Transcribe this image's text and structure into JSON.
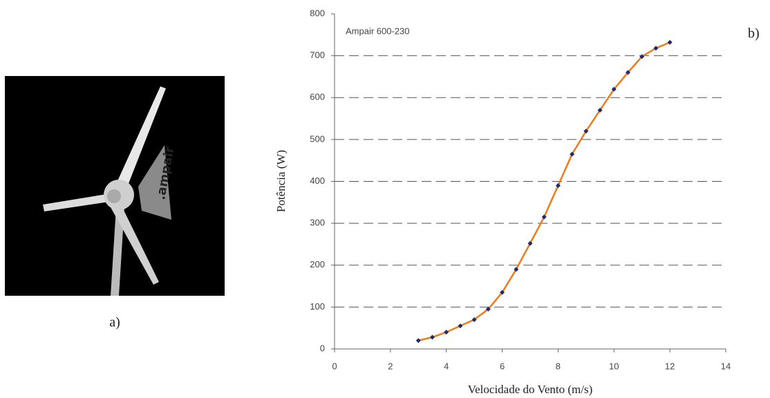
{
  "panel_labels": [
    "a)",
    "b)"
  ],
  "chart_data": {
    "type": "line",
    "annotation": "Ampair 600-230",
    "xlabel": "Velocidade do Vento (m/s)",
    "ylabel": "Potência (W)",
    "x": [
      3,
      3.5,
      4,
      4.5,
      5,
      5.5,
      6,
      6.5,
      7,
      7.5,
      8,
      8.5,
      9,
      9.5,
      10,
      10.5,
      11,
      11.5,
      12
    ],
    "series": [
      {
        "color": "#f07a1a",
        "marker_color": "#1f2a6b",
        "values": [
          20,
          28,
          40,
          55,
          70,
          95,
          135,
          190,
          252,
          315,
          390,
          465,
          520,
          570,
          620,
          660,
          698,
          718,
          732
        ]
      }
    ],
    "xlim": [
      0,
      14
    ],
    "xticks": [
      0,
      2,
      4,
      6,
      8,
      10,
      12,
      14
    ],
    "ylim": [
      0,
      800
    ],
    "yticks": [
      0,
      100,
      200,
      300,
      400,
      500,
      600,
      700,
      800
    ],
    "grid": true
  }
}
